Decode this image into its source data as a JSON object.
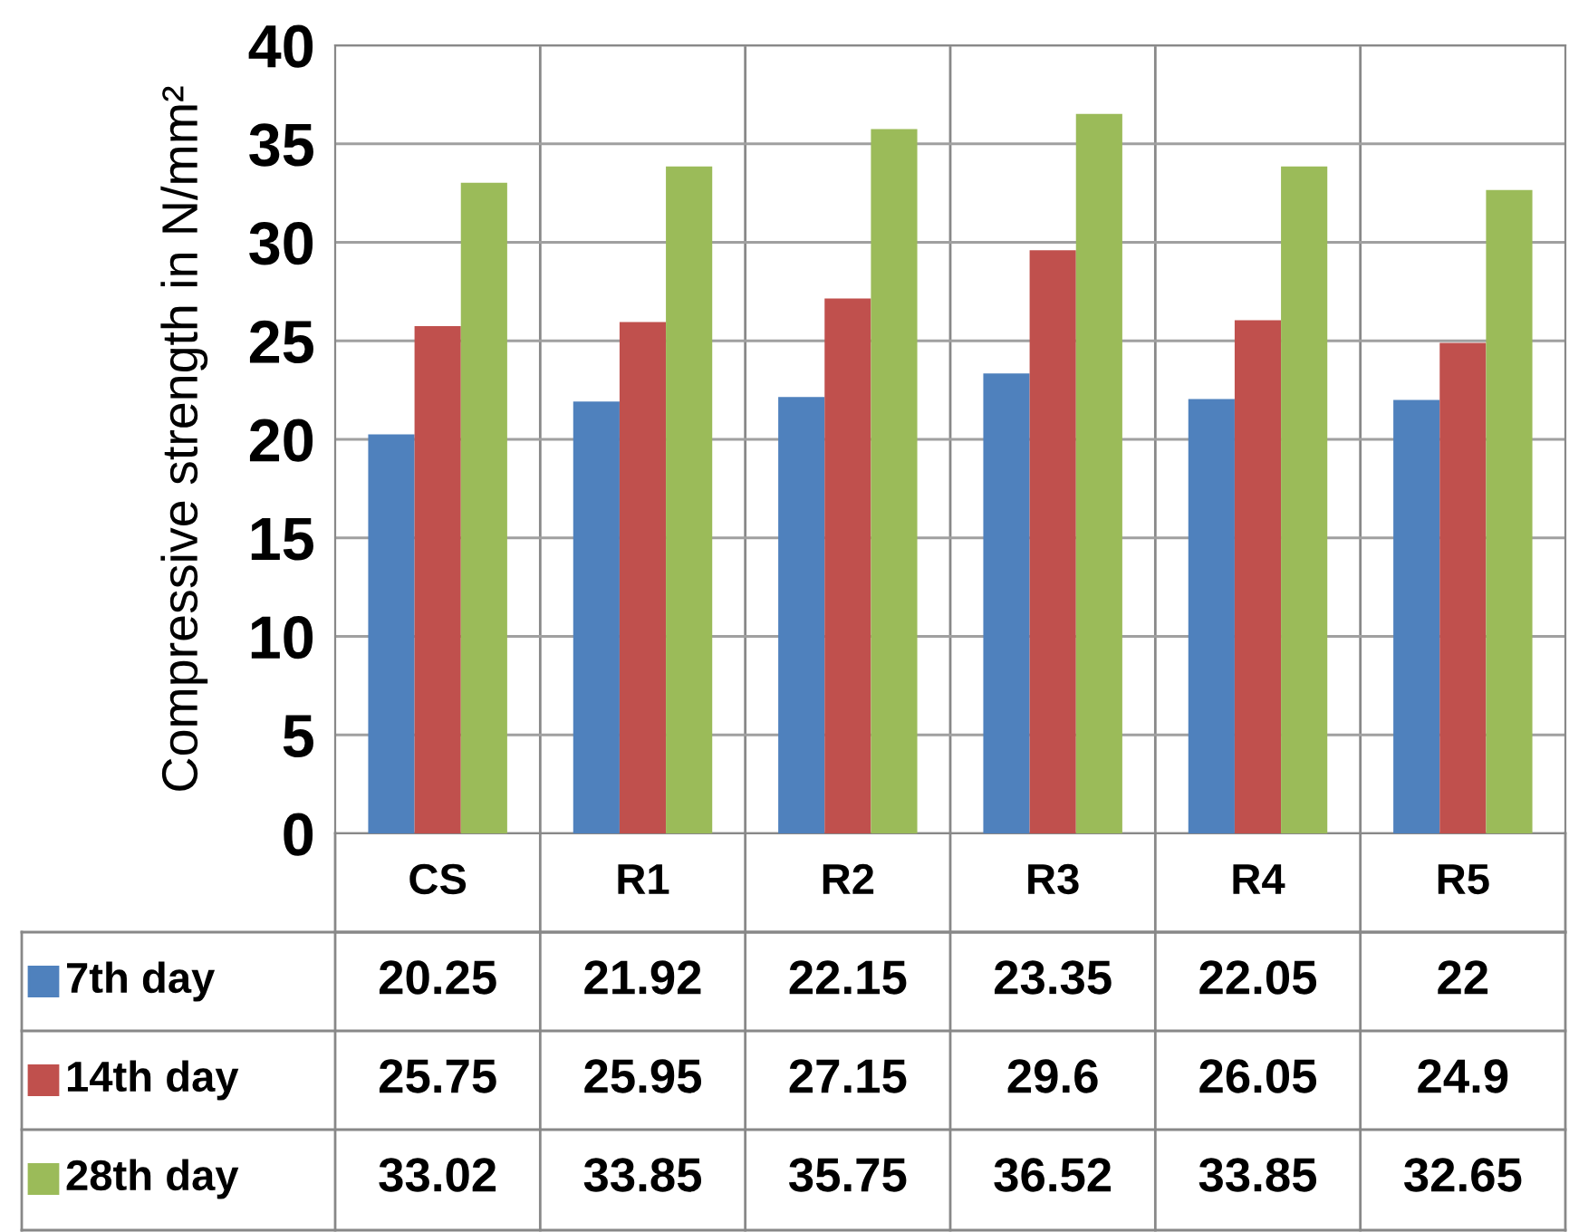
{
  "chart_data": {
    "type": "bar",
    "ylabel": "Compressive strength in N/mm²",
    "categories": [
      "CS",
      "R1",
      "R2",
      "R3",
      "R4",
      "R5"
    ],
    "series": [
      {
        "name": "7th day",
        "color": "#4f81bd",
        "values": [
          20.25,
          21.92,
          22.15,
          23.35,
          22.05,
          22
        ]
      },
      {
        "name": "14th day",
        "color": "#c0504d",
        "values": [
          25.75,
          25.95,
          27.15,
          29.6,
          26.05,
          24.9
        ]
      },
      {
        "name": "28th day",
        "color": "#9bbb59",
        "values": [
          33.02,
          33.85,
          35.75,
          36.52,
          33.85,
          32.65
        ]
      }
    ],
    "ylim": [
      0,
      40
    ],
    "yticks": [
      0,
      5,
      10,
      15,
      20,
      25,
      30,
      35,
      40
    ],
    "grid": "y",
    "data_labels": true,
    "legend": "bottom"
  }
}
